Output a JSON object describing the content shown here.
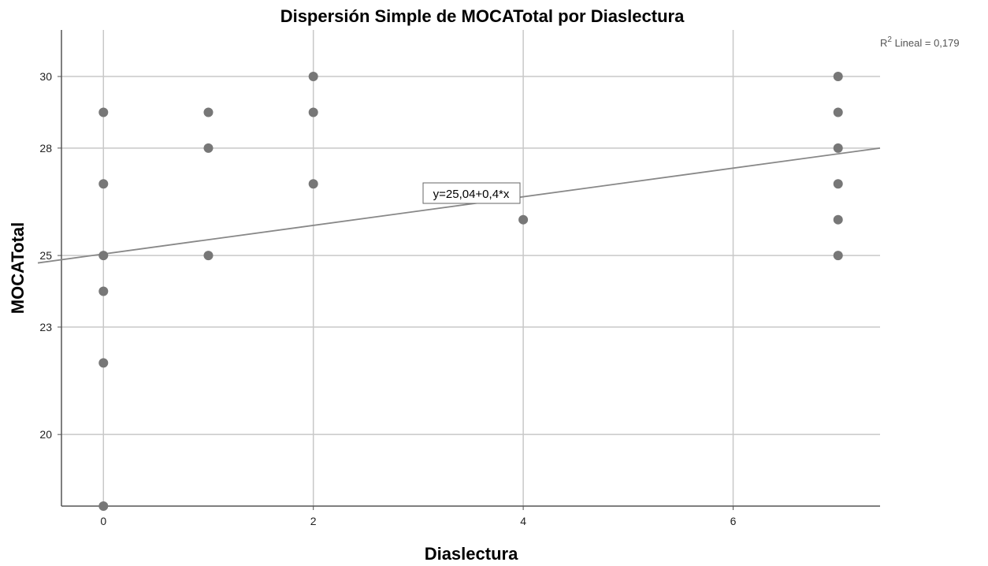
{
  "chart_data": {
    "type": "scatter",
    "title": "Dispersión Simple de MOCATotal por Diaslectura",
    "xlabel": "Diaslectura",
    "ylabel": "MOCATotal",
    "xlim": [
      -0.4,
      7.4
    ],
    "ylim": [
      18.0,
      31.3
    ],
    "x_ticks": [
      0,
      2,
      4,
      6
    ],
    "y_ticks": [
      20,
      23,
      25,
      28,
      30
    ],
    "x_tick_labels": [
      "0",
      "2",
      "4",
      "6"
    ],
    "y_tick_labels": [
      "20",
      "23",
      "25",
      "28",
      "30"
    ],
    "grid": true,
    "points": [
      {
        "x": 0,
        "y": 29
      },
      {
        "x": 0,
        "y": 27
      },
      {
        "x": 0,
        "y": 25
      },
      {
        "x": 0,
        "y": 24
      },
      {
        "x": 0,
        "y": 22
      },
      {
        "x": 0,
        "y": 18
      },
      {
        "x": 1,
        "y": 29
      },
      {
        "x": 1,
        "y": 28
      },
      {
        "x": 1,
        "y": 25
      },
      {
        "x": 2,
        "y": 30
      },
      {
        "x": 2,
        "y": 29
      },
      {
        "x": 2,
        "y": 27
      },
      {
        "x": 4,
        "y": 26
      },
      {
        "x": 7,
        "y": 30
      },
      {
        "x": 7,
        "y": 29
      },
      {
        "x": 7,
        "y": 28
      },
      {
        "x": 7,
        "y": 27
      },
      {
        "x": 7,
        "y": 26
      },
      {
        "x": 7,
        "y": 25
      }
    ],
    "fit_line": {
      "intercept": 25.04,
      "slope": 0.4,
      "equation_label": "y=25,04+0,4*x"
    },
    "r2": {
      "prefix": "R",
      "superscript": "2",
      "text": " Lineal = 0,179"
    },
    "colors": {
      "points": "#777777",
      "fit_line": "#888888",
      "grid": "#c8c8c8",
      "axis": "#555555"
    }
  }
}
